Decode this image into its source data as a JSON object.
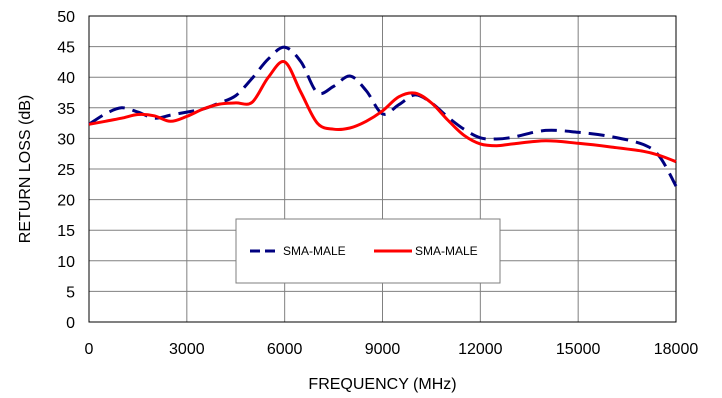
{
  "chart_data": {
    "type": "line",
    "title": "",
    "xlabel": "FREQUENCY (MHz)",
    "ylabel": "RETURN LOSS (dB)",
    "xlim": [
      0,
      18000
    ],
    "ylim": [
      0,
      50
    ],
    "x_ticks": [
      0,
      3000,
      6000,
      9000,
      12000,
      15000,
      18000
    ],
    "y_ticks": [
      0,
      5,
      10,
      15,
      20,
      25,
      30,
      35,
      40,
      45,
      50
    ],
    "grid": true,
    "legend_position": "center-bottom",
    "series": [
      {
        "name": "SMA-MALE",
        "color": "#000080",
        "style": "dashed",
        "x": [
          0,
          500,
          1000,
          1500,
          2000,
          2500,
          3000,
          3500,
          4000,
          4500,
          5000,
          5500,
          6000,
          6500,
          7000,
          7500,
          8000,
          8500,
          9000,
          9500,
          10000,
          10500,
          11000,
          11500,
          12000,
          12500,
          13000,
          14000,
          15000,
          16000,
          17000,
          17500,
          18000
        ],
        "values": [
          32.3,
          34.0,
          35.0,
          34.3,
          33.3,
          33.8,
          34.3,
          34.8,
          35.8,
          37.0,
          39.8,
          43.0,
          44.9,
          42.5,
          37.5,
          38.5,
          40.2,
          37.8,
          34.0,
          35.5,
          37.1,
          35.8,
          33.5,
          31.5,
          30.1,
          29.9,
          30.2,
          31.3,
          31.0,
          30.3,
          29.0,
          27.0,
          22.2
        ]
      },
      {
        "name": "SMA-MALE",
        "color": "#ff0000",
        "style": "solid",
        "x": [
          0,
          500,
          1000,
          1500,
          2000,
          2500,
          3000,
          3500,
          4000,
          4500,
          5000,
          5500,
          6000,
          6500,
          7000,
          7500,
          8000,
          8500,
          9000,
          9500,
          10000,
          10500,
          11000,
          11500,
          12000,
          12500,
          13000,
          14000,
          15000,
          16000,
          17000,
          17500,
          18000
        ],
        "values": [
          32.3,
          32.8,
          33.3,
          33.9,
          33.7,
          32.8,
          33.6,
          34.8,
          35.6,
          35.8,
          35.9,
          40.0,
          42.5,
          37.5,
          32.5,
          31.5,
          31.7,
          32.8,
          34.5,
          36.8,
          37.4,
          35.8,
          33.0,
          30.5,
          29.1,
          28.8,
          29.1,
          29.6,
          29.2,
          28.6,
          27.9,
          27.2,
          26.2
        ]
      }
    ]
  }
}
